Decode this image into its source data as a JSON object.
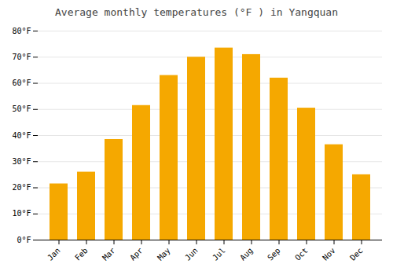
{
  "chart_data": {
    "type": "bar",
    "title": "Average monthly temperatures (°F ) in Yangquan",
    "categories": [
      "Jan",
      "Feb",
      "Mar",
      "Apr",
      "May",
      "Jun",
      "Jul",
      "Aug",
      "Sep",
      "Oct",
      "Nov",
      "Dec"
    ],
    "values": [
      21.5,
      26.0,
      38.5,
      51.5,
      63.0,
      70.0,
      73.5,
      71.0,
      62.0,
      50.5,
      36.5,
      25.0
    ],
    "color": "#F5A800",
    "ylim": [
      0,
      80
    ],
    "yticks": [
      {
        "value": 0,
        "label": "0°F"
      },
      {
        "value": 10,
        "label": "10°F"
      },
      {
        "value": 20,
        "label": "20°F"
      },
      {
        "value": 30,
        "label": "30°F"
      },
      {
        "value": 40,
        "label": "40°F"
      },
      {
        "value": 50,
        "label": "50°F"
      },
      {
        "value": 60,
        "label": "60°F"
      },
      {
        "value": 70,
        "label": "70°F"
      },
      {
        "value": 80,
        "label": "80°F"
      }
    ],
    "grid": true
  }
}
